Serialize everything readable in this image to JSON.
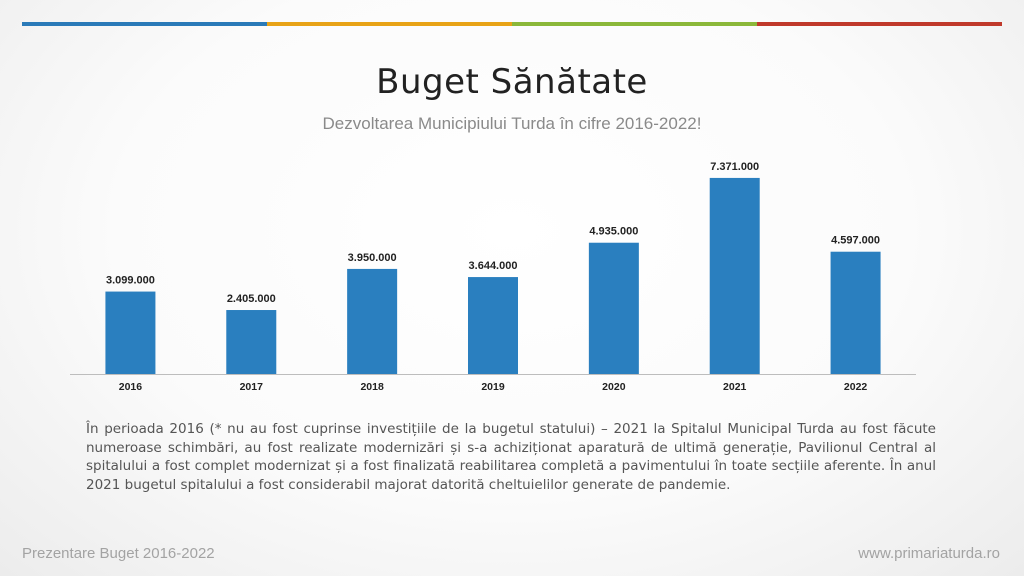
{
  "header": {
    "title": "Buget Sănătate",
    "subtitle": "Dezvoltarea Municipiului Turda în cifre 2016-2022!",
    "accent_colors": [
      "#2a7ab8",
      "#e8a317",
      "#8bb83a",
      "#c0392b"
    ]
  },
  "chart_data": {
    "type": "bar",
    "categories": [
      "2016",
      "2017",
      "2018",
      "2019",
      "2020",
      "2021",
      "2022"
    ],
    "values": [
      3099000,
      2405000,
      3950000,
      3644000,
      4935000,
      7371000,
      4597000
    ],
    "data_labels": [
      "3.099.000",
      "2.405.000",
      "3.950.000",
      "3.644.000",
      "4.935.000",
      "7.371.000",
      "4.597.000"
    ],
    "title": "",
    "xlabel": "",
    "ylabel": "",
    "ylim": [
      0,
      8000000
    ],
    "grid": false,
    "bar_color": "#2a7fbf"
  },
  "description": "În perioada 2016 (* nu au fost cuprinse investițiile de la bugetul statului) – 2021 la Spitalul Municipal Turda au fost făcute numeroase schimbări, au fost realizate modernizări și s-a achiziționat aparatură de ultimă generație, Pavilionul Central al spitalului a fost complet modernizat și a fost finalizată reabilitarea completă a pavimentului în toate secțiile aferente. În anul 2021 bugetul spitalului a fost considerabil majorat datorită cheltuielilor generate de pandemie.",
  "footer": {
    "left": "Prezentare Buget 2016-2022",
    "right": "www.primariaturda.ro"
  }
}
